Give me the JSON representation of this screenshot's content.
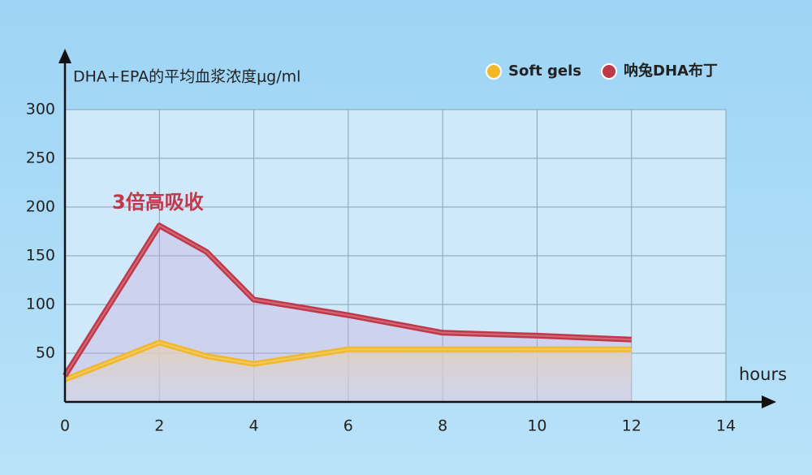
{
  "chart_data": {
    "type": "line",
    "y_label": "DHA+EPA的平均血浆浓度μg/ml",
    "x_label": "hours",
    "annotation": "3倍高吸收",
    "x": [
      0,
      2,
      3,
      4,
      6,
      8,
      10,
      12
    ],
    "series": [
      {
        "name": "Soft gels",
        "color": "#f0b82a",
        "values": [
          23,
          61,
          47,
          39,
          54,
          54,
          54,
          54
        ]
      },
      {
        "name": "呐兔DHA布丁",
        "color": "#c0394a",
        "values": [
          27,
          181,
          154,
          105,
          89,
          71,
          68,
          64
        ]
      }
    ],
    "xlim": [
      0,
      14
    ],
    "xticks": [
      0,
      2,
      4,
      6,
      8,
      10,
      12,
      14
    ],
    "ylim": [
      0,
      300
    ],
    "yticks": [
      50,
      100,
      150,
      200,
      250,
      300
    ],
    "grid": true,
    "legend": "top-right"
  }
}
